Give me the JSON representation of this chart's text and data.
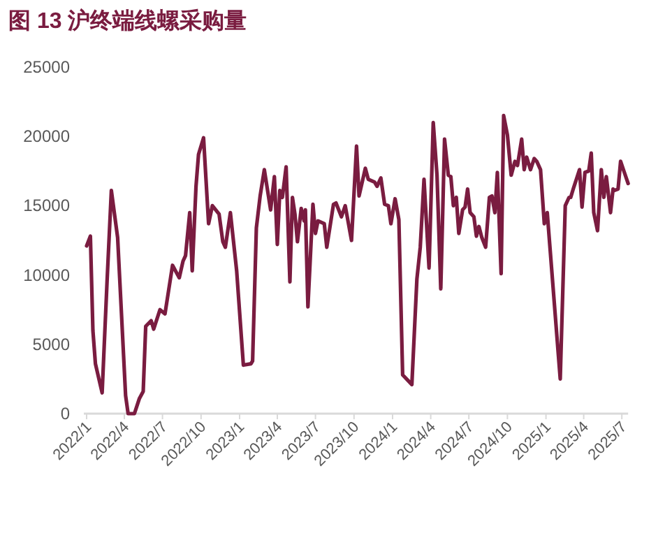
{
  "chart_data": {
    "type": "line",
    "title": "图 13 沪终端线螺采购量",
    "x": [
      "2022-01-01",
      "2022-01-10",
      "2022-01-16",
      "2022-01-22",
      "2022-02-07",
      "2022-02-19",
      "2022-03-01",
      "2022-03-16",
      "2022-04-04",
      "2022-04-10",
      "2022-04-25",
      "2022-05-07",
      "2022-05-16",
      "2022-05-22",
      "2022-06-04",
      "2022-06-10",
      "2022-06-25",
      "2022-07-07",
      "2022-07-25",
      "2022-08-10",
      "2022-08-19",
      "2022-08-25",
      "2022-09-04",
      "2022-09-10",
      "2022-09-19",
      "2022-09-25",
      "2022-10-07",
      "2022-10-19",
      "2022-10-28",
      "2022-11-13",
      "2022-11-22",
      "2022-11-28",
      "2022-12-10",
      "2022-12-25",
      "2023-01-10",
      "2023-01-28",
      "2023-02-01",
      "2023-02-10",
      "2023-02-19",
      "2023-03-01",
      "2023-03-16",
      "2023-03-25",
      "2023-04-01",
      "2023-04-07",
      "2023-04-13",
      "2023-04-22",
      "2023-05-01",
      "2023-05-07",
      "2023-05-13",
      "2023-05-19",
      "2023-05-28",
      "2023-06-04",
      "2023-06-07",
      "2023-06-13",
      "2023-06-25",
      "2023-07-01",
      "2023-07-07",
      "2023-07-22",
      "2023-07-28",
      "2023-08-13",
      "2023-08-19",
      "2023-09-01",
      "2023-09-10",
      "2023-09-25",
      "2023-10-07",
      "2023-10-13",
      "2023-10-28",
      "2023-11-04",
      "2023-11-19",
      "2023-11-25",
      "2023-12-04",
      "2023-12-13",
      "2023-12-22",
      "2023-12-28",
      "2024-01-07",
      "2024-01-16",
      "2024-01-25",
      "2024-02-16",
      "2024-02-28",
      "2024-03-07",
      "2024-03-16",
      "2024-03-28",
      "2024-04-07",
      "2024-04-16",
      "2024-04-25",
      "2024-05-04",
      "2024-05-13",
      "2024-05-19",
      "2024-05-25",
      "2024-06-01",
      "2024-06-07",
      "2024-06-16",
      "2024-06-22",
      "2024-06-28",
      "2024-07-04",
      "2024-07-13",
      "2024-07-19",
      "2024-07-25",
      "2024-08-01",
      "2024-08-10",
      "2024-08-19",
      "2024-08-25",
      "2024-09-01",
      "2024-09-07",
      "2024-09-16",
      "2024-09-22",
      "2024-10-01",
      "2024-10-10",
      "2024-10-19",
      "2024-10-25",
      "2024-11-04",
      "2024-11-10",
      "2024-11-16",
      "2024-11-25",
      "2024-12-04",
      "2024-12-10",
      "2024-12-19",
      "2024-12-28",
      "2025-01-04",
      "2025-02-04",
      "2025-02-16",
      "2025-02-25",
      "2025-03-01",
      "2025-03-07",
      "2025-03-22",
      "2025-03-28",
      "2025-04-04",
      "2025-04-13",
      "2025-04-19",
      "2025-04-25",
      "2025-05-04",
      "2025-05-13",
      "2025-05-19",
      "2025-05-25",
      "2025-06-04",
      "2025-06-10",
      "2025-06-13",
      "2025-06-22",
      "2025-06-28",
      "2025-07-07",
      "2025-07-16"
    ],
    "series": [
      {
        "color": "#7a1c40",
        "values": [
          12100,
          12800,
          6000,
          3600,
          1500,
          9700,
          16100,
          12700,
          1300,
          0,
          0,
          1100,
          1600,
          6300,
          6700,
          6100,
          7500,
          7200,
          10700,
          9800,
          11000,
          11400,
          14500,
          10300,
          16400,
          18700,
          19900,
          13700,
          15000,
          14400,
          12400,
          12000,
          14500,
          10300,
          3500,
          3600,
          3800,
          13400,
          15700,
          17600,
          14700,
          17100,
          12200,
          16100,
          15600,
          17800,
          9500,
          15600,
          14400,
          12400,
          14800,
          13900,
          14700,
          7700,
          15100,
          13000,
          13900,
          13700,
          12000,
          15100,
          15200,
          14200,
          15000,
          12500,
          19300,
          15700,
          17700,
          16900,
          16700,
          16400,
          17000,
          15100,
          15000,
          13700,
          15500,
          14000,
          2800,
          2100,
          9700,
          12000,
          16900,
          10500,
          21000,
          17200,
          9000,
          19800,
          17200,
          17100,
          15000,
          15600,
          13000,
          14700,
          14900,
          16200,
          14500,
          14200,
          12800,
          13500,
          12700,
          12000,
          15600,
          15700,
          14500,
          17400,
          10100,
          21500,
          20100,
          17200,
          18200,
          17900,
          19800,
          17600,
          18500,
          17600,
          18400,
          18200,
          17600,
          13700,
          14500,
          2500,
          15000,
          15600,
          15600,
          16200,
          17600,
          14900,
          17400,
          17500,
          18800,
          14500,
          13200,
          17600,
          15600,
          17100,
          14500,
          16200,
          16100,
          16200,
          18200,
          17400,
          16600
        ]
      }
    ],
    "xlim": [
      "2022-01-01",
      "2025-07-16"
    ],
    "xticks": [
      {
        "value": "2022-01",
        "label": "2022/1"
      },
      {
        "value": "2022-04",
        "label": "2022/4"
      },
      {
        "value": "2022-07",
        "label": "2022/7"
      },
      {
        "value": "2022-10",
        "label": "2022/10"
      },
      {
        "value": "2023-01",
        "label": "2023/1"
      },
      {
        "value": "2023-04",
        "label": "2023/4"
      },
      {
        "value": "2023-07",
        "label": "2023/7"
      },
      {
        "value": "2023-10",
        "label": "2023/10"
      },
      {
        "value": "2024-01",
        "label": "2024/1"
      },
      {
        "value": "2024-04",
        "label": "2024/4"
      },
      {
        "value": "2024-07",
        "label": "2024/7"
      },
      {
        "value": "2024-10",
        "label": "2024/10"
      },
      {
        "value": "2025-01",
        "label": "2025/1"
      },
      {
        "value": "2025-04",
        "label": "2025/4"
      },
      {
        "value": "2025-07",
        "label": "2025/7"
      }
    ],
    "ylim": [
      0,
      25000
    ],
    "yticks": [
      0,
      5000,
      10000,
      15000,
      20000,
      25000
    ]
  }
}
